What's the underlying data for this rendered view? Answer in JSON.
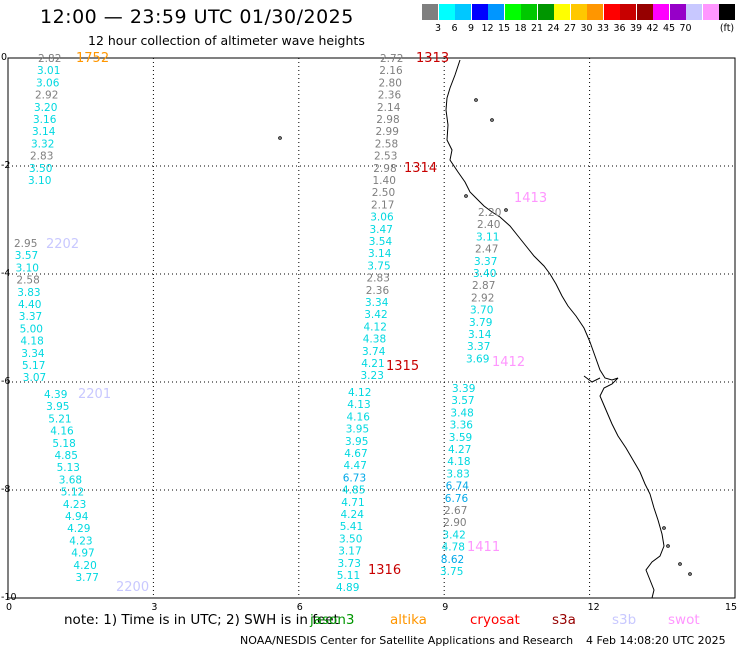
{
  "header": {
    "title": "12:00 — 23:59 UTC 01/30/2025",
    "subtitle": "12 hour collection of altimeter wave heights"
  },
  "colorbar": {
    "unit": "(ft)",
    "colors": [
      "#7f7f7f",
      "#00ffff",
      "#00c8ff",
      "#0000ff",
      "#0096ff",
      "#00ff00",
      "#00c800",
      "#009600",
      "#ffff00",
      "#ffc800",
      "#ff9600",
      "#ff0000",
      "#c80000",
      "#960000",
      "#ff00ff",
      "#9600c8",
      "#c8c8ff",
      "#ff96ff",
      "#000000"
    ],
    "labels": [
      "3",
      "6",
      "9",
      "12",
      "15",
      "18",
      "21",
      "24",
      "27",
      "30",
      "33",
      "36",
      "39",
      "42",
      "45",
      "70"
    ]
  },
  "axes": {
    "x_ticks": [
      "0",
      "3",
      "6",
      "9",
      "12",
      "15"
    ],
    "y_ticks": [
      "0",
      "-2",
      "-4",
      "-6",
      "-8",
      "-10"
    ]
  },
  "tracks": [
    {
      "id": "1752",
      "id_color": "#ff9600",
      "x": 1.4,
      "values": [
        "2.82",
        "3.01",
        "3.06",
        "2.92",
        "3.20",
        "3.16",
        "3.14",
        "3.32",
        "2.83",
        "3.50",
        "3.10"
      ]
    },
    {
      "id": "2202",
      "id_color": "#c8c8ff",
      "x": 1.1,
      "values": [
        "2.95",
        "3.57",
        "3.10",
        "2.58",
        "3.83",
        "4.40",
        "3.37",
        "5.00",
        "4.18",
        "3.34",
        "5.17",
        "3.07"
      ]
    },
    {
      "id": "2201",
      "id_color": "#c8c8ff",
      "x": 1.4,
      "values": [
        "4.39",
        "3.95",
        "5.21",
        "4.16",
        "5.18",
        "4.85",
        "5.13",
        "3.68",
        "5.12",
        "4.23",
        "4.94",
        "4.29",
        "4.23",
        "4.97",
        "4.20",
        "3.77"
      ]
    },
    {
      "id": "2200",
      "id_color": "#c8c8ff",
      "x": 2.4,
      "values": []
    },
    {
      "id": "1313",
      "id_color": "#c80000",
      "x": 8.2,
      "values": [
        "2.72",
        "2.16",
        "2.80",
        "2.36",
        "2.14",
        "2.98",
        "2.99",
        "2.58",
        "2.53",
        "2.98",
        "1.40",
        "2.50",
        "2.17",
        "3.06",
        "3.47",
        "3.54",
        "3.14",
        "3.75",
        "2.83",
        "2.36",
        "3.34",
        "3.42",
        "4.12",
        "4.38",
        "3.74",
        "4.21",
        "3.23"
      ]
    },
    {
      "id": "1314",
      "id_color": "#c80000",
      "x": 8.2,
      "values": []
    },
    {
      "id": "1315",
      "id_color": "#c80000",
      "x": 7.9,
      "values": [
        "4.12",
        "4.13",
        "4.16",
        "3.95",
        "3.95",
        "4.67",
        "4.47",
        "6.73",
        "4.85",
        "4.71",
        "4.24",
        "5.41",
        "3.50",
        "3.17",
        "3.73",
        "5.11",
        "4.89"
      ]
    },
    {
      "id": "1316",
      "id_color": "#c80000",
      "x": 7.5,
      "values": []
    },
    {
      "id": "1413",
      "id_color": "#ff96ff",
      "x": 10.0,
      "values": [
        "2.20",
        "2.40",
        "3.11",
        "2.47",
        "3.37",
        "3.40",
        "2.87",
        "2.92",
        "3.70",
        "3.79",
        "3.14",
        "3.37",
        "3.69"
      ]
    },
    {
      "id": "1412",
      "id_color": "#ff96ff",
      "x": 9.5,
      "values": [
        "3.39",
        "3.57",
        "3.48",
        "3.36",
        "3.59",
        "4.27",
        "4.18",
        "3.83",
        "6.74",
        "6.76",
        "2.67",
        "2.90",
        "3.42",
        "4.78",
        "8.62",
        "3.75"
      ]
    },
    {
      "id": "1411",
      "id_color": "#ff96ff",
      "x": 9.5,
      "values": []
    }
  ],
  "note": {
    "prefix": "note:  1) Time is in UTC;  2) SWH is in feet",
    "legend": [
      {
        "label": "jason3",
        "color": "#009600"
      },
      {
        "label": "altika",
        "color": "#ff9600"
      },
      {
        "label": "cryosat",
        "color": "#ff0000"
      },
      {
        "label": "s3a",
        "color": "#960000"
      },
      {
        "label": "s3b",
        "color": "#c8c8ff"
      },
      {
        "label": "swot",
        "color": "#ff96ff"
      }
    ]
  },
  "credit": {
    "left": "NOAA/NESDIS Center for Satellite Applications and Research",
    "right": "4 Feb 14:08:20 UTC 2025"
  }
}
